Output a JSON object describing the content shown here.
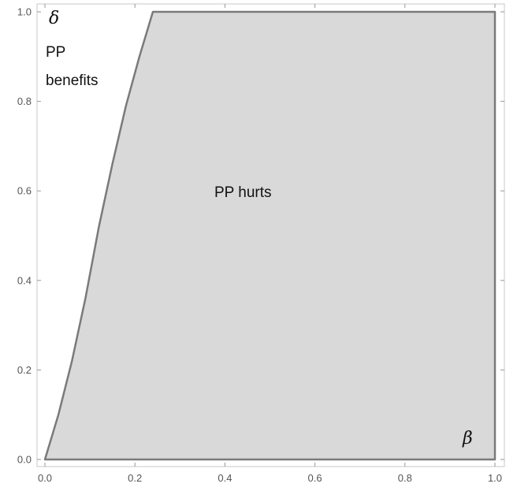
{
  "chart_data": {
    "type": "area",
    "x_range": [
      0,
      1
    ],
    "y_range": [
      0,
      1
    ],
    "x_ticks": [
      "0.0",
      "0.2",
      "0.4",
      "0.6",
      "0.8",
      "1.0"
    ],
    "y_ticks": [
      "0.0",
      "0.2",
      "0.4",
      "0.6",
      "0.8",
      "1.0"
    ],
    "x_tick_values": [
      0,
      0.2,
      0.4,
      0.6,
      0.8,
      1.0
    ],
    "y_tick_values": [
      0,
      0.2,
      0.4,
      0.6,
      0.8,
      1.0
    ],
    "grid": false,
    "xlabel": "β",
    "ylabel": "δ",
    "region": {
      "fill_color": "#d9d9d9",
      "edge_color": "#7a7a7a",
      "boundary": [
        {
          "x": 0.0,
          "y": 0.0
        },
        {
          "x": 0.03,
          "y": 0.1
        },
        {
          "x": 0.06,
          "y": 0.22
        },
        {
          "x": 0.09,
          "y": 0.36
        },
        {
          "x": 0.12,
          "y": 0.52
        },
        {
          "x": 0.15,
          "y": 0.66
        },
        {
          "x": 0.18,
          "y": 0.79
        },
        {
          "x": 0.21,
          "y": 0.9
        },
        {
          "x": 0.24,
          "y": 1.0
        },
        {
          "x": 1.0,
          "y": 1.0
        },
        {
          "x": 1.0,
          "y": 0.0
        }
      ]
    },
    "annotations": {
      "benefits_line1": "PP",
      "benefits_line2": "benefits",
      "hurts": "PP hurts"
    }
  }
}
